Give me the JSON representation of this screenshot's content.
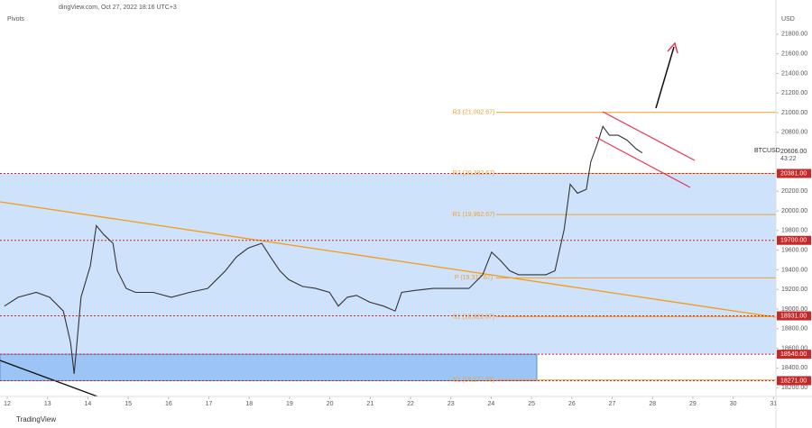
{
  "header": {
    "source": "dingView.com, Oct 27, 2022 18:16 UTC+3",
    "indicator": "Pivots",
    "currency": "USD",
    "brand": "TradingView"
  },
  "chart_data": {
    "type": "line",
    "series": [
      {
        "name": "BTCUSD",
        "color": "#333333",
        "x": [
          11.93,
          12.27,
          12.72,
          13.05,
          13.39,
          13.57,
          13.66,
          13.83,
          14.06,
          14.21,
          14.39,
          14.62,
          14.73,
          14.95,
          15.18,
          15.62,
          16.07,
          16.52,
          16.97,
          17.19,
          17.41,
          17.68,
          17.97,
          18.31,
          18.53,
          18.76,
          18.98,
          19.32,
          19.65,
          19.99,
          20.21,
          20.43,
          20.66,
          20.99,
          21.33,
          21.62,
          21.78,
          22.11,
          22.56,
          23.01,
          23.45,
          23.79,
          24.01,
          24.24,
          24.46,
          24.68,
          25.02,
          25.36,
          25.58,
          25.81,
          25.96,
          26.14,
          26.36,
          26.47,
          26.63,
          26.77,
          26.93,
          27.15,
          27.37,
          27.6,
          27.75
        ],
        "values": [
          19030,
          19120,
          19170,
          19120,
          18980,
          18660,
          18340,
          19120,
          19440,
          19850,
          19760,
          19670,
          19390,
          19210,
          19170,
          19170,
          19120,
          19170,
          19210,
          19300,
          19390,
          19530,
          19620,
          19670,
          19530,
          19390,
          19300,
          19230,
          19210,
          19170,
          19030,
          19120,
          19140,
          19070,
          19030,
          18980,
          19170,
          19190,
          19210,
          19210,
          19210,
          19350,
          19580,
          19490,
          19390,
          19350,
          19350,
          19350,
          19390,
          19810,
          20270,
          20180,
          20220,
          20500,
          20680,
          20860,
          20770,
          20770,
          20720,
          20630,
          20590
        ]
      }
    ],
    "xlim": [
      11.82,
      31.06
    ],
    "xticks": [
      12,
      13,
      14,
      15,
      16,
      17,
      18,
      19,
      20,
      21,
      22,
      23,
      24,
      25,
      26,
      27,
      28,
      29,
      30,
      31
    ],
    "ylim": [
      18110,
      22010
    ],
    "yticks": [
      {
        "value": 18200,
        "label": "18200.00"
      },
      {
        "value": 18400,
        "label": "18400.00"
      },
      {
        "value": 18600,
        "label": "18600.00"
      },
      {
        "value": 18800,
        "label": "18800.00"
      },
      {
        "value": 19000,
        "label": "19000.00"
      },
      {
        "value": 19200,
        "label": "19200.00"
      },
      {
        "value": 19400,
        "label": "19400.00"
      },
      {
        "value": 19600,
        "label": "19600.00"
      },
      {
        "value": 19800,
        "label": "19800.00"
      },
      {
        "value": 20000,
        "label": "20000.00"
      },
      {
        "value": 20200,
        "label": "20200.00"
      },
      {
        "value": 20400,
        "label": "20400.00"
      },
      {
        "value": 20600,
        "label": "20600.00"
      },
      {
        "value": 20800,
        "label": "20800.00"
      },
      {
        "value": 21000,
        "label": "21000.00"
      },
      {
        "value": 21200,
        "label": "21200.00"
      },
      {
        "value": 21400,
        "label": "21400.00"
      },
      {
        "value": 21600,
        "label": "21600.00"
      },
      {
        "value": 21800,
        "label": "21800.00"
      }
    ],
    "pivots": [
      {
        "name": "R3 (21,002.67)",
        "value": 21002.67
      },
      {
        "name": "R2 (20,382.67)",
        "value": 20382.67
      },
      {
        "name": "R1 (19,962.67)",
        "value": 19962.67
      },
      {
        "name": "P (19,317.67)",
        "value": 19317.67
      },
      {
        "name": "S1 (18,922.67)",
        "value": 18922.67
      },
      {
        "name": "S2 (18,277.33)",
        "value": 18277.33
      }
    ],
    "pivot_color": "#f0a030",
    "levels": [
      {
        "value": 20381,
        "label": "20381.00"
      },
      {
        "value": 19700,
        "label": "19700.00"
      },
      {
        "value": 18931,
        "label": "18931.00"
      },
      {
        "value": 18540,
        "label": "18540.00"
      },
      {
        "value": 18271,
        "label": "18271.00"
      }
    ],
    "level_color": "#c62828",
    "last_price": {
      "value": 20606,
      "label": "20606.00"
    },
    "countdown": "43:22"
  }
}
